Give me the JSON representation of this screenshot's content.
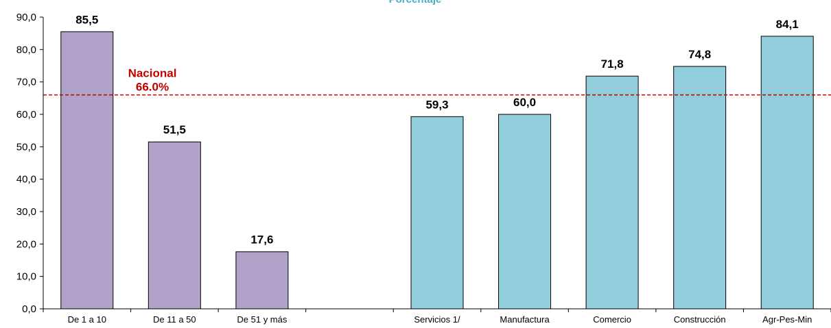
{
  "chart_data": {
    "type": "bar",
    "categories": [
      "De 1 a 10",
      "De 11 a 50",
      "De 51 y más",
      "",
      "Servicios 1/",
      "Manufactura",
      "Comercio",
      "Construcción",
      "Agr-Pes-Min"
    ],
    "values": [
      85.5,
      51.5,
      17.6,
      null,
      59.3,
      60.0,
      71.8,
      74.8,
      84.1
    ],
    "data_labels": [
      "85,5",
      "51,5",
      "17,6",
      "",
      "59,3",
      "60,0",
      "71,8",
      "74,8",
      "84,1"
    ],
    "bar_colors": [
      "#b0a2c8",
      "#b0a2c8",
      "#b0a2c8",
      "",
      "#92cddc",
      "#92cddc",
      "#92cddc",
      "#92cddc",
      "#92cddc"
    ],
    "ylim": [
      0,
      90
    ],
    "yticks": [
      0,
      10,
      20,
      30,
      40,
      50,
      60,
      70,
      80,
      90
    ],
    "ytick_labels": [
      "0,0",
      "10,0",
      "20,0",
      "30,0",
      "40,0",
      "50,0",
      "60,0",
      "70,0",
      "80,0",
      "90,0"
    ],
    "reference_line": {
      "value": 66.0,
      "label_line1": "Nacional",
      "label_line2": "66.0%",
      "color": "#c00000",
      "style": "dashed"
    },
    "title_fragment": "Porcentaje",
    "title_color": "#4bacc6",
    "grid": false,
    "legend": "none"
  }
}
